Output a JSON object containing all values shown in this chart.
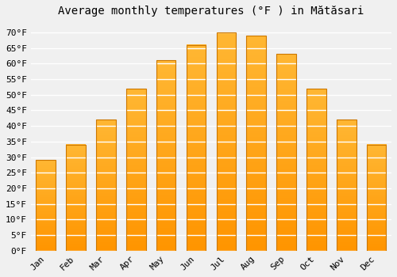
{
  "title": "Average monthly temperatures (°F ) in Mătăsari",
  "months": [
    "Jan",
    "Feb",
    "Mar",
    "Apr",
    "May",
    "Jun",
    "Jul",
    "Aug",
    "Sep",
    "Oct",
    "Nov",
    "Dec"
  ],
  "values": [
    29,
    34,
    42,
    52,
    61,
    66,
    70,
    69,
    63,
    52,
    42,
    34
  ],
  "bar_color": "#FFA500",
  "bar_edge_color": "#CC7700",
  "ylim": [
    0,
    73
  ],
  "yticks": [
    0,
    5,
    10,
    15,
    20,
    25,
    30,
    35,
    40,
    45,
    50,
    55,
    60,
    65,
    70
  ],
  "background_color": "#f0f0f0",
  "grid_color": "#ffffff",
  "title_fontsize": 10,
  "tick_fontsize": 8
}
